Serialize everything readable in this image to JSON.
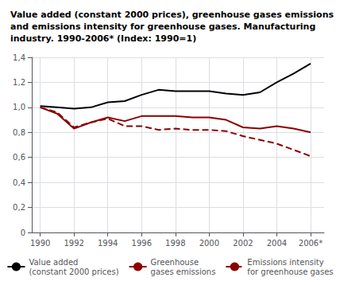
{
  "chart_data": {
    "type": "line",
    "title": "Value added (constant 2000 prices), greenhouse gases emissions\nand emissions intensity for greenhouse gases. Manufacturing\nindustry. 1990-2006* (Index: 1990=1)",
    "x": [
      1990,
      1991,
      1992,
      1993,
      1994,
      1995,
      1996,
      1997,
      1998,
      1999,
      2000,
      2001,
      2002,
      2003,
      2004,
      2005,
      2006
    ],
    "series": [
      {
        "name": "Value added\n(constant 2000 prices)",
        "color": "#000000",
        "line_style": "solid",
        "values": [
          1.01,
          1.0,
          0.99,
          1.0,
          1.04,
          1.05,
          1.1,
          1.14,
          1.13,
          1.13,
          1.13,
          1.11,
          1.1,
          1.12,
          1.2,
          1.27,
          1.35
        ]
      },
      {
        "name": "Greenhouse\ngases emissions",
        "color": "#8B0000",
        "line_style": "solid",
        "values": [
          1.0,
          0.95,
          0.83,
          0.88,
          0.92,
          0.89,
          0.93,
          0.93,
          0.93,
          0.92,
          0.92,
          0.9,
          0.84,
          0.83,
          0.85,
          0.83,
          0.8
        ]
      },
      {
        "name": "Emissions intensity\nfor greenhouse gases",
        "color": "#8B0000",
        "line_style": "dashed",
        "values": [
          1.0,
          0.96,
          0.84,
          0.88,
          0.91,
          0.85,
          0.85,
          0.82,
          0.83,
          0.82,
          0.82,
          0.81,
          0.77,
          0.74,
          0.71,
          0.66,
          0.61
        ]
      }
    ],
    "xlim": [
      1989.5,
      2006.8
    ],
    "xticks": [
      1990,
      1992,
      1994,
      1996,
      1998,
      2000,
      2002,
      2004,
      {
        "value": 2006,
        "label": "2006*"
      }
    ],
    "ylim": [
      0,
      1.4
    ],
    "yticks": [
      0,
      {
        "value": 0.2,
        "label": "0,2"
      },
      {
        "value": 0.4,
        "label": "0,4"
      },
      {
        "value": 0.6,
        "label": "0,6"
      },
      {
        "value": 0.8,
        "label": "0,8"
      },
      {
        "value": 1.0,
        "label": "1,0"
      },
      {
        "value": 1.2,
        "label": "1,2"
      },
      {
        "value": 1.4,
        "label": "1,4"
      }
    ],
    "grid": true,
    "legend": "bottom"
  }
}
